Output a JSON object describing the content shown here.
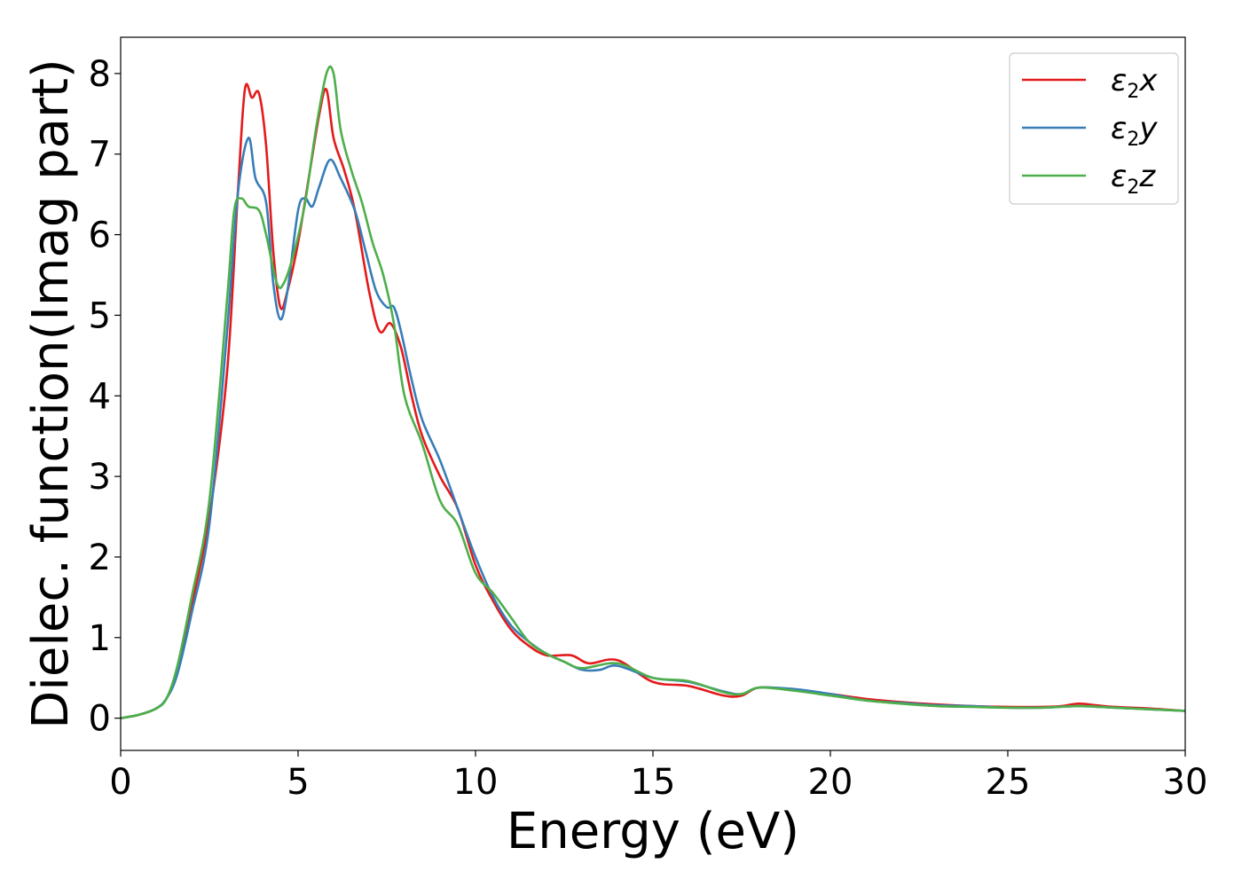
{
  "chart_data": {
    "type": "line",
    "title": "",
    "xlabel": "Energy (eV)",
    "ylabel": "Dielec. function(Imag part)",
    "xlim": [
      0,
      30
    ],
    "ylim": [
      -0.4,
      8.45
    ],
    "xticks": [
      0,
      5,
      10,
      15,
      20,
      25,
      30
    ],
    "yticks": [
      0,
      1,
      2,
      3,
      4,
      5,
      6,
      7,
      8
    ],
    "grid": false,
    "legend_position": "top-right",
    "colors": {
      "x": "#e41a1c",
      "y": "#377eb8",
      "z": "#4daf4a"
    },
    "series": [
      {
        "name": "ε2x",
        "symbol": "ε",
        "subscript": "2",
        "suffix": "x",
        "color": "#e41a1c",
        "points": [
          [
            0,
            0
          ],
          [
            0.5,
            0.04
          ],
          [
            1.0,
            0.12
          ],
          [
            1.3,
            0.25
          ],
          [
            1.6,
            0.6
          ],
          [
            2.0,
            1.4
          ],
          [
            2.5,
            2.5
          ],
          [
            3.0,
            4.3
          ],
          [
            3.3,
            6.5
          ],
          [
            3.5,
            7.8
          ],
          [
            3.7,
            7.7
          ],
          [
            3.9,
            7.75
          ],
          [
            4.1,
            7.1
          ],
          [
            4.3,
            5.8
          ],
          [
            4.5,
            5.1
          ],
          [
            4.7,
            5.3
          ],
          [
            5.0,
            5.9
          ],
          [
            5.3,
            6.7
          ],
          [
            5.6,
            7.5
          ],
          [
            5.8,
            7.8
          ],
          [
            6.0,
            7.2
          ],
          [
            6.3,
            6.8
          ],
          [
            6.6,
            6.3
          ],
          [
            7.0,
            5.3
          ],
          [
            7.3,
            4.8
          ],
          [
            7.6,
            4.9
          ],
          [
            7.9,
            4.6
          ],
          [
            8.2,
            4.0
          ],
          [
            8.5,
            3.5
          ],
          [
            9.0,
            3.0
          ],
          [
            9.5,
            2.6
          ],
          [
            10.0,
            1.9
          ],
          [
            10.5,
            1.45
          ],
          [
            11.0,
            1.1
          ],
          [
            11.5,
            0.9
          ],
          [
            12.0,
            0.78
          ],
          [
            12.7,
            0.78
          ],
          [
            13.2,
            0.68
          ],
          [
            14.0,
            0.72
          ],
          [
            15.0,
            0.45
          ],
          [
            16.0,
            0.4
          ],
          [
            17.0,
            0.28
          ],
          [
            17.5,
            0.28
          ],
          [
            18.0,
            0.38
          ],
          [
            19.0,
            0.35
          ],
          [
            20.0,
            0.3
          ],
          [
            21.0,
            0.24
          ],
          [
            22.0,
            0.2
          ],
          [
            23.0,
            0.17
          ],
          [
            24.0,
            0.15
          ],
          [
            25.0,
            0.14
          ],
          [
            26.0,
            0.14
          ],
          [
            26.5,
            0.15
          ],
          [
            27.0,
            0.18
          ],
          [
            27.5,
            0.16
          ],
          [
            28.0,
            0.14
          ],
          [
            29.0,
            0.12
          ],
          [
            30.0,
            0.09
          ]
        ]
      },
      {
        "name": "ε2y",
        "symbol": "ε",
        "subscript": "2",
        "suffix": "y",
        "color": "#377eb8",
        "points": [
          [
            0,
            0
          ],
          [
            0.5,
            0.04
          ],
          [
            1.0,
            0.12
          ],
          [
            1.3,
            0.25
          ],
          [
            1.6,
            0.55
          ],
          [
            2.0,
            1.3
          ],
          [
            2.5,
            2.4
          ],
          [
            3.0,
            4.8
          ],
          [
            3.3,
            6.5
          ],
          [
            3.6,
            7.2
          ],
          [
            3.8,
            6.7
          ],
          [
            4.1,
            6.4
          ],
          [
            4.3,
            5.4
          ],
          [
            4.5,
            4.95
          ],
          [
            4.7,
            5.3
          ],
          [
            5.0,
            6.3
          ],
          [
            5.2,
            6.45
          ],
          [
            5.4,
            6.35
          ],
          [
            5.6,
            6.6
          ],
          [
            5.9,
            6.93
          ],
          [
            6.2,
            6.7
          ],
          [
            6.6,
            6.3
          ],
          [
            6.9,
            5.8
          ],
          [
            7.2,
            5.3
          ],
          [
            7.5,
            5.1
          ],
          [
            7.7,
            5.1
          ],
          [
            7.9,
            4.8
          ],
          [
            8.2,
            4.2
          ],
          [
            8.5,
            3.7
          ],
          [
            9.0,
            3.2
          ],
          [
            9.5,
            2.6
          ],
          [
            10.0,
            2.0
          ],
          [
            10.5,
            1.5
          ],
          [
            11.0,
            1.15
          ],
          [
            11.5,
            0.95
          ],
          [
            12.0,
            0.8
          ],
          [
            12.5,
            0.7
          ],
          [
            13.0,
            0.6
          ],
          [
            13.5,
            0.6
          ],
          [
            14.0,
            0.65
          ],
          [
            15.0,
            0.5
          ],
          [
            16.0,
            0.45
          ],
          [
            17.0,
            0.33
          ],
          [
            17.5,
            0.3
          ],
          [
            18.0,
            0.38
          ],
          [
            19.0,
            0.36
          ],
          [
            20.0,
            0.3
          ],
          [
            21.0,
            0.22
          ],
          [
            22.0,
            0.19
          ],
          [
            23.0,
            0.16
          ],
          [
            24.0,
            0.15
          ],
          [
            25.0,
            0.13
          ],
          [
            26.0,
            0.13
          ],
          [
            27.0,
            0.15
          ],
          [
            28.0,
            0.13
          ],
          [
            29.0,
            0.11
          ],
          [
            30.0,
            0.09
          ]
        ]
      },
      {
        "name": "ε2z",
        "symbol": "ε",
        "subscript": "2",
        "suffix": "z",
        "color": "#4daf4a",
        "points": [
          [
            0,
            0
          ],
          [
            0.5,
            0.04
          ],
          [
            1.0,
            0.12
          ],
          [
            1.3,
            0.25
          ],
          [
            1.6,
            0.65
          ],
          [
            2.0,
            1.5
          ],
          [
            2.5,
            2.7
          ],
          [
            3.0,
            5.2
          ],
          [
            3.2,
            6.3
          ],
          [
            3.4,
            6.45
          ],
          [
            3.6,
            6.35
          ],
          [
            3.9,
            6.3
          ],
          [
            4.1,
            6.0
          ],
          [
            4.4,
            5.4
          ],
          [
            4.6,
            5.4
          ],
          [
            4.9,
            5.8
          ],
          [
            5.2,
            6.4
          ],
          [
            5.5,
            7.3
          ],
          [
            5.8,
            8.0
          ],
          [
            6.0,
            8.0
          ],
          [
            6.2,
            7.3
          ],
          [
            6.5,
            6.8
          ],
          [
            6.8,
            6.4
          ],
          [
            7.1,
            5.9
          ],
          [
            7.4,
            5.5
          ],
          [
            7.7,
            4.9
          ],
          [
            8.0,
            4.0
          ],
          [
            8.5,
            3.4
          ],
          [
            9.0,
            2.7
          ],
          [
            9.5,
            2.4
          ],
          [
            10.0,
            1.8
          ],
          [
            10.5,
            1.55
          ],
          [
            11.0,
            1.25
          ],
          [
            11.5,
            0.95
          ],
          [
            12.0,
            0.8
          ],
          [
            12.5,
            0.7
          ],
          [
            13.0,
            0.62
          ],
          [
            14.0,
            0.68
          ],
          [
            15.0,
            0.5
          ],
          [
            16.0,
            0.46
          ],
          [
            17.0,
            0.32
          ],
          [
            17.5,
            0.3
          ],
          [
            18.0,
            0.38
          ],
          [
            19.0,
            0.34
          ],
          [
            20.0,
            0.28
          ],
          [
            21.0,
            0.22
          ],
          [
            22.0,
            0.18
          ],
          [
            23.0,
            0.15
          ],
          [
            24.0,
            0.14
          ],
          [
            25.0,
            0.13
          ],
          [
            26.0,
            0.13
          ],
          [
            27.0,
            0.15
          ],
          [
            28.0,
            0.13
          ],
          [
            29.0,
            0.11
          ],
          [
            30.0,
            0.09
          ]
        ]
      }
    ]
  }
}
